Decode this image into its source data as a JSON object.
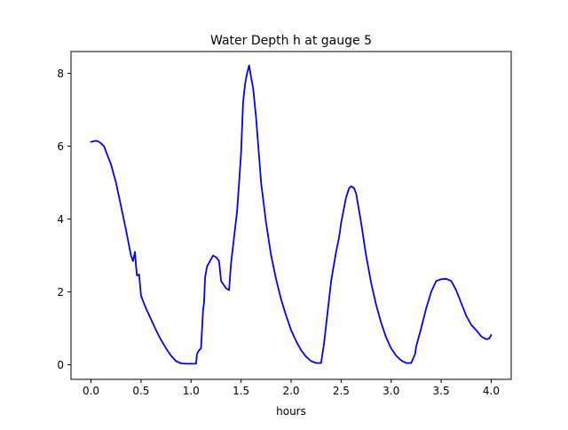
{
  "chart_data": {
    "type": "line",
    "title": "Water Depth h at gauge 5",
    "xlabel": "hours",
    "ylabel": "",
    "xlim": [
      -0.2,
      4.2
    ],
    "ylim": [
      -0.4,
      8.6
    ],
    "xticks": [
      0.0,
      0.5,
      1.0,
      1.5,
      2.0,
      2.5,
      3.0,
      3.5,
      4.0
    ],
    "xtick_labels": [
      "0.0",
      "0.5",
      "1.0",
      "1.5",
      "2.0",
      "2.5",
      "3.0",
      "3.5",
      "4.0"
    ],
    "yticks": [
      0,
      2,
      4,
      6,
      8
    ],
    "ytick_labels": [
      "0",
      "2",
      "4",
      "6",
      "8"
    ],
    "grid": false,
    "series": [
      {
        "color": "#0000ff",
        "x": [
          0.0,
          0.05,
          0.08,
          0.1,
          0.13,
          0.15,
          0.2,
          0.25,
          0.3,
          0.35,
          0.4,
          0.42,
          0.44,
          0.45,
          0.46,
          0.48,
          0.5,
          0.52,
          0.55,
          0.6,
          0.65,
          0.7,
          0.75,
          0.8,
          0.85,
          0.9,
          0.95,
          1.0,
          1.05,
          1.06,
          1.08,
          1.1,
          1.12,
          1.13,
          1.14,
          1.16,
          1.2,
          1.22,
          1.25,
          1.28,
          1.3,
          1.35,
          1.38,
          1.4,
          1.43,
          1.46,
          1.48,
          1.5,
          1.52,
          1.54,
          1.56,
          1.58,
          1.6,
          1.62,
          1.65,
          1.7,
          1.75,
          1.8,
          1.85,
          1.9,
          1.95,
          2.0,
          2.05,
          2.1,
          2.15,
          2.2,
          2.25,
          2.3,
          2.33,
          2.35,
          2.38,
          2.4,
          2.45,
          2.48,
          2.5,
          2.55,
          2.58,
          2.6,
          2.63,
          2.65,
          2.7,
          2.75,
          2.8,
          2.85,
          2.9,
          2.95,
          3.0,
          3.05,
          3.1,
          3.15,
          3.2,
          3.24,
          3.25,
          3.3,
          3.35,
          3.4,
          3.45,
          3.5,
          3.55,
          3.6,
          3.65,
          3.7,
          3.75,
          3.8,
          3.85,
          3.9,
          3.95,
          3.98,
          4.0
        ],
        "y": [
          6.12,
          6.15,
          6.12,
          6.08,
          6.0,
          5.85,
          5.5,
          5.0,
          4.35,
          3.7,
          3.0,
          2.85,
          3.1,
          2.7,
          2.45,
          2.48,
          1.9,
          1.75,
          1.55,
          1.25,
          0.95,
          0.68,
          0.45,
          0.25,
          0.1,
          0.04,
          0.03,
          0.03,
          0.03,
          0.3,
          0.4,
          0.45,
          1.5,
          1.7,
          2.4,
          2.7,
          2.9,
          3.0,
          2.95,
          2.85,
          2.3,
          2.1,
          2.05,
          2.8,
          3.5,
          4.2,
          5.0,
          5.8,
          7.2,
          7.7,
          8.0,
          8.22,
          7.9,
          7.6,
          6.8,
          5.0,
          3.9,
          3.0,
          2.35,
          1.8,
          1.35,
          0.95,
          0.65,
          0.4,
          0.22,
          0.1,
          0.05,
          0.05,
          0.6,
          1.1,
          1.8,
          2.3,
          3.1,
          3.5,
          3.9,
          4.6,
          4.85,
          4.9,
          4.85,
          4.7,
          3.9,
          3.0,
          2.25,
          1.65,
          1.15,
          0.75,
          0.45,
          0.25,
          0.12,
          0.05,
          0.05,
          0.3,
          0.5,
          1.0,
          1.55,
          2.0,
          2.3,
          2.35,
          2.36,
          2.3,
          2.05,
          1.7,
          1.35,
          1.1,
          0.95,
          0.78,
          0.7,
          0.72,
          0.82
        ]
      }
    ]
  }
}
